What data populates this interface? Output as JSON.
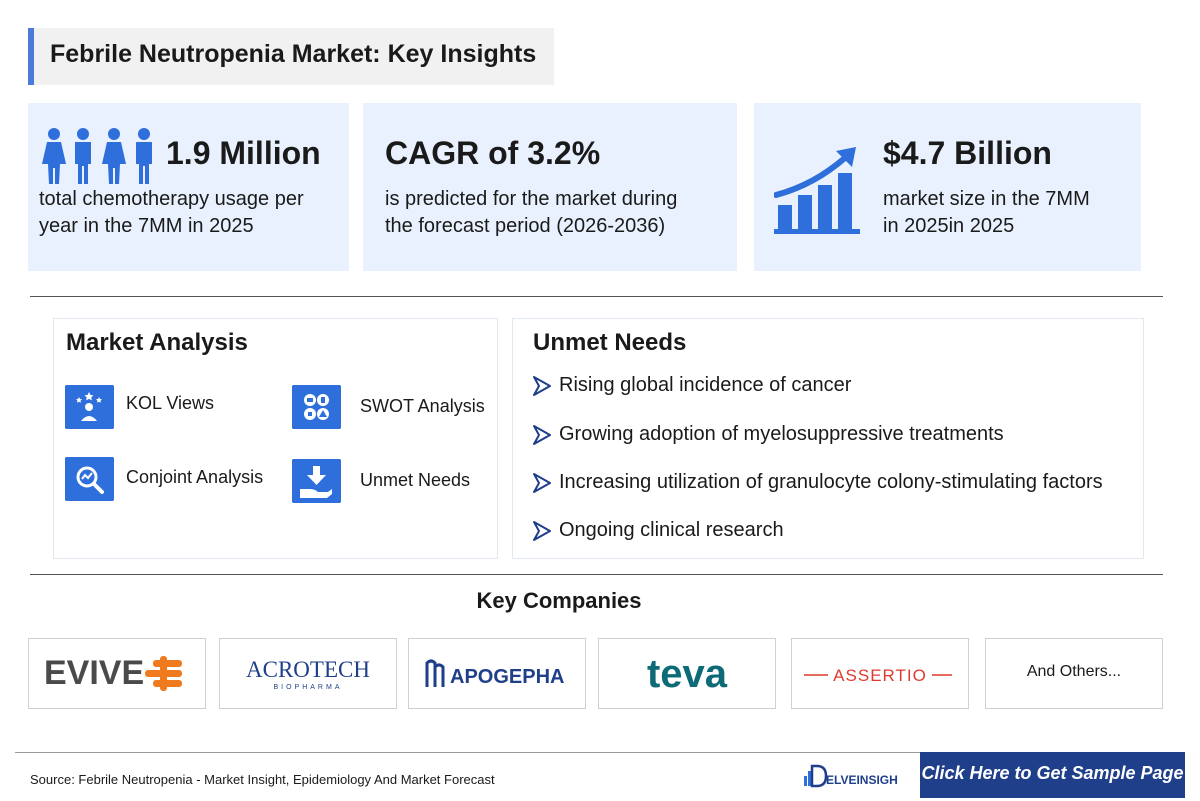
{
  "title": "Febrile Neutropenia Market: Key Insights",
  "stats": [
    {
      "headline": "1.9 Million",
      "line1": "total chemotherapy usage per",
      "line2": "year in the 7MM in 2025",
      "icon": "people-icon"
    },
    {
      "headline": "CAGR of 3.2%",
      "line1": "is predicted for the market during",
      "line2": "the forecast period (2026-2036)"
    },
    {
      "headline": "$4.7 Billion",
      "line1": "market size in the 7MM",
      "line2": "in 2025in 2025",
      "icon": "growth-chart-icon"
    }
  ],
  "market_analysis": {
    "title": "Market Analysis",
    "items": [
      {
        "label": "KOL Views",
        "icon": "kol-views-icon"
      },
      {
        "label": "SWOT Analysis",
        "icon": "swot-icon"
      },
      {
        "label": "Conjoint Analysis",
        "icon": "conjoint-analysis-icon"
      },
      {
        "label": "Unmet Needs",
        "icon": "unmet-needs-icon"
      }
    ]
  },
  "unmet_needs": {
    "title": "Unmet Needs",
    "items": [
      "Rising global incidence of cancer",
      "Growing adoption of myelosuppressive treatments",
      "Increasing utilization of granulocyte colony-stimulating factors",
      "Ongoing clinical research"
    ]
  },
  "key_companies": {
    "title": "Key Companies",
    "logos": [
      {
        "name": "EVIVE"
      },
      {
        "name": "ACROTECH",
        "sub": "BIOPHARMA"
      },
      {
        "name": "APOGEPHA"
      },
      {
        "name": "teva"
      },
      {
        "name": "ASSERTIO"
      },
      {
        "name": "And Others..."
      }
    ]
  },
  "footer": {
    "source": "Source: Febrile Neutropenia - Market Insight, Epidemiology And Market Forecast",
    "brand": "ELVEINSIGHT",
    "cta": "Click Here to Get Sample Page"
  },
  "colors": {
    "accent_blue": "#2f6fdb",
    "stat_background": "#e8f1fd",
    "cta_background": "#1f3f8a",
    "evive_orange": "#f07a1e",
    "teva_teal": "#0d6b78",
    "assertio_red": "#e03a2f"
  }
}
